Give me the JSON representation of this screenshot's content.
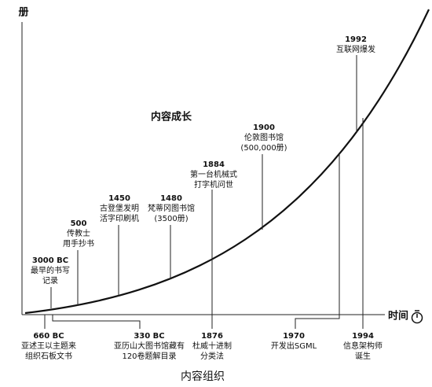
{
  "axes": {
    "y_label": "册",
    "x_label": "时间"
  },
  "curve_label": "内容成长",
  "caption": "内容组织",
  "events_above": [
    {
      "year": "3000 BC",
      "lines": [
        "最早的书写",
        "记录"
      ]
    },
    {
      "year": "500",
      "lines": [
        "传教士",
        "用手抄书"
      ]
    },
    {
      "year": "1450",
      "lines": [
        "古登堡发明",
        "活字印刷机"
      ]
    },
    {
      "year": "1480",
      "lines": [
        "梵蒂冈图书馆",
        "(3500册)"
      ]
    },
    {
      "year": "1884",
      "lines": [
        "第一台机械式",
        "打字机问世"
      ]
    },
    {
      "year": "1900",
      "lines": [
        "伦敦图书馆",
        "(500,000册)"
      ]
    },
    {
      "year": "1992",
      "lines": [
        "互联网爆发"
      ]
    }
  ],
  "events_below": [
    {
      "year": "660 BC",
      "lines": [
        "亚述王以主题来",
        "组织石板文书"
      ]
    },
    {
      "year": "330 BC",
      "lines": [
        "亚历山大图书馆藏有",
        "120卷题解目录"
      ]
    },
    {
      "year": "1876",
      "lines": [
        "杜威十进制",
        "分类法"
      ]
    },
    {
      "year": "1970",
      "lines": [
        "开发出SGML"
      ]
    },
    {
      "year": "1994",
      "lines": [
        "信息架构师",
        "诞生"
      ]
    }
  ]
}
